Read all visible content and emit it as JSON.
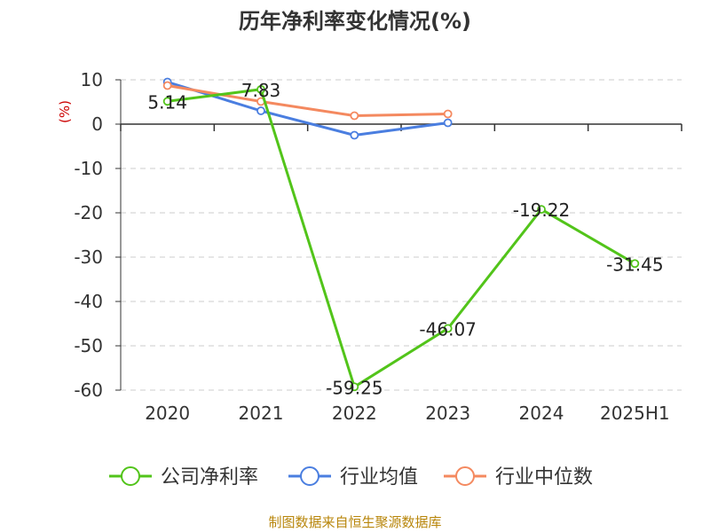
{
  "chart_data": {
    "type": "line",
    "title": "历年净利率变化情况(%)",
    "unit_label": "(%)",
    "categories": [
      "2020",
      "2021",
      "2022",
      "2023",
      "2024",
      "2025H1"
    ],
    "ylim": [
      -60,
      10
    ],
    "yticks": [
      10,
      0,
      -10,
      -20,
      -30,
      -40,
      -50,
      -60
    ],
    "grid": true,
    "legend_position": "bottom",
    "series": [
      {
        "name": "公司净利率",
        "color": "#52c41a",
        "values": [
          5.14,
          7.83,
          -59.25,
          -46.07,
          -19.22,
          -31.45
        ],
        "labels": [
          "5.14",
          "7.83",
          "-59.25",
          "-46.07",
          "-19.22",
          "-31.45"
        ]
      },
      {
        "name": "行业均值",
        "color": "#4a7ee0",
        "values": [
          9.5,
          3.0,
          -2.5,
          0.3,
          null,
          null
        ]
      },
      {
        "name": "行业中位数",
        "color": "#f4895f",
        "values": [
          8.7,
          5.1,
          1.9,
          2.3,
          null,
          null
        ]
      }
    ]
  },
  "source": "制图数据来自恒生聚源数据库"
}
